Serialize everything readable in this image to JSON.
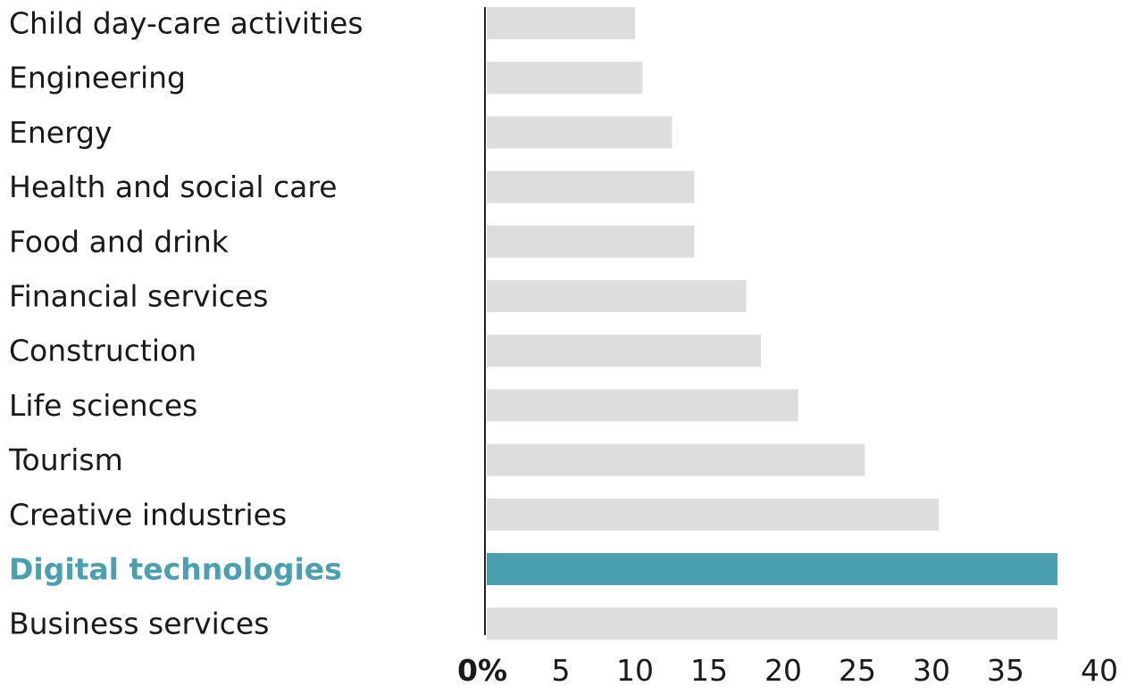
{
  "chart_data": {
    "type": "bar",
    "orientation": "horizontal",
    "categories": [
      "Child day-care activities",
      "Engineering",
      "Energy",
      "Health and social care",
      "Food and drink",
      "Financial services",
      "Construction",
      "Life sciences",
      "Tourism",
      "Creative industries",
      "Digital technologies",
      "Business services"
    ],
    "values": [
      10,
      10.5,
      12.5,
      14,
      14,
      17.5,
      18.5,
      21,
      25.5,
      30.5,
      38.5,
      38.5
    ],
    "highlight_category": "Digital technologies",
    "xlim": [
      0,
      40
    ],
    "x_ticks": [
      {
        "value": 0,
        "label": "0%"
      },
      {
        "value": 5,
        "label": "5"
      },
      {
        "value": 10,
        "label": "10"
      },
      {
        "value": 15,
        "label": "15"
      },
      {
        "value": 20,
        "label": "20"
      },
      {
        "value": 25,
        "label": "25"
      },
      {
        "value": 30,
        "label": "30"
      },
      {
        "value": 35,
        "label": "35"
      },
      {
        "value": 40,
        "label": "40"
      }
    ],
    "title": "",
    "xlabel": "",
    "ylabel": "",
    "grid": false,
    "legend": "none",
    "colors": {
      "bar": "#dddddd",
      "highlight_bar": "#4aa0ae",
      "highlight_label": "#4aa0ae",
      "axis": "#222222",
      "text": "#1a1a1a"
    }
  }
}
